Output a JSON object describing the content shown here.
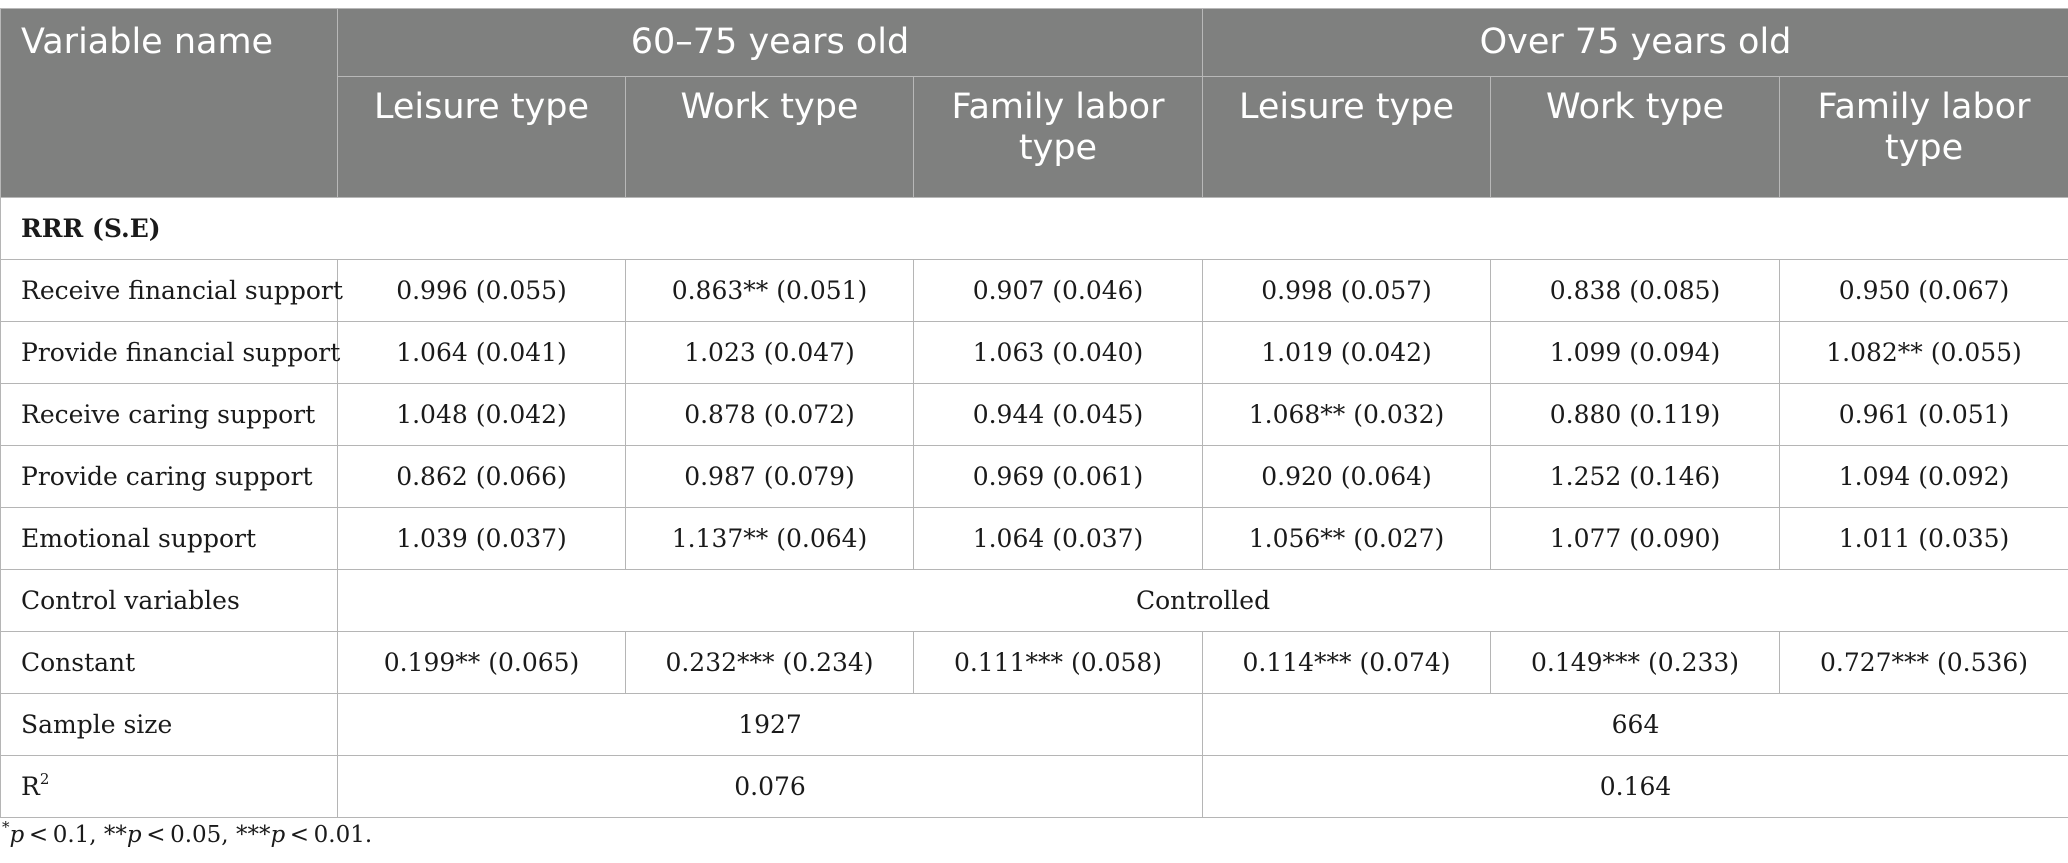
{
  "table": {
    "header": {
      "variable_name": "Variable name",
      "group_1": "60–75 years old",
      "group_2": "Over 75 years old",
      "subcolumns": [
        "Leisure type",
        "Work type",
        "Family labor type",
        "Leisure type",
        "Work type",
        "Family labor type"
      ]
    },
    "section_label": "RRR (S.E)",
    "rows": [
      {
        "label": "Receive financial support",
        "values": [
          "0.996 (0.055)",
          "0.863** (0.051)",
          "0.907 (0.046)",
          "0.998 (0.057)",
          "0.838 (0.085)",
          "0.950 (0.067)"
        ]
      },
      {
        "label": "Provide financial support",
        "values": [
          "1.064 (0.041)",
          "1.023 (0.047)",
          "1.063 (0.040)",
          "1.019 (0.042)",
          "1.099 (0.094)",
          "1.082** (0.055)"
        ]
      },
      {
        "label": "Receive caring support",
        "values": [
          "1.048 (0.042)",
          "0.878 (0.072)",
          "0.944 (0.045)",
          "1.068** (0.032)",
          "0.880 (0.119)",
          "0.961 (0.051)"
        ]
      },
      {
        "label": "Provide caring support",
        "values": [
          "0.862 (0.066)",
          "0.987 (0.079)",
          "0.969 (0.061)",
          "0.920 (0.064)",
          "1.252 (0.146)",
          "1.094 (0.092)"
        ]
      },
      {
        "label": "Emotional support",
        "values": [
          "1.039 (0.037)",
          "1.137** (0.064)",
          "1.064 (0.037)",
          "1.056** (0.027)",
          "1.077 (0.090)",
          "1.011 (0.035)"
        ]
      }
    ],
    "control": {
      "label": "Control variables",
      "value": "Controlled"
    },
    "constant": {
      "label": "Constant",
      "values": [
        "0.199** (0.065)",
        "0.232*** (0.234)",
        "0.111*** (0.058)",
        "0.114*** (0.074)",
        "0.149*** (0.233)",
        "0.727*** (0.536)"
      ]
    },
    "sample_size": {
      "label": "Sample size",
      "values": [
        "1927",
        "664"
      ]
    },
    "r2": {
      "label_base": "R",
      "label_sup": "2",
      "values": [
        "0.076",
        "0.164"
      ]
    }
  },
  "footnote": {
    "p1_stars": "*",
    "p1_var": "p",
    "p1_rest": " < 0.1, ",
    "p2_stars": "**",
    "p2_var": "p",
    "p2_rest": " < 0.05, ",
    "p3_stars": "***",
    "p3_var": "p",
    "p3_rest": " < 0.01."
  },
  "colors": {
    "header_bg": "#7f807f",
    "header_text": "#ffffff",
    "grid": "#b5b5b5"
  }
}
